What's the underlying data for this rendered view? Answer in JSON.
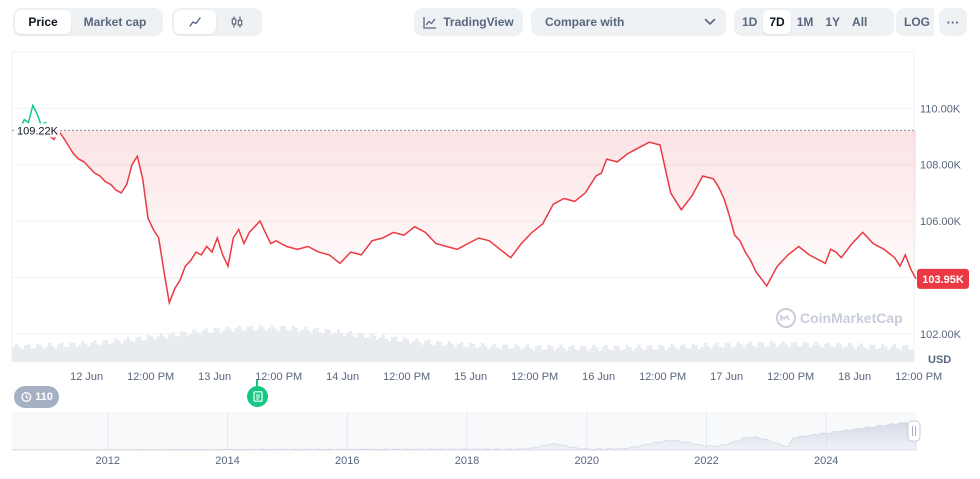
{
  "toolbar": {
    "type_tabs": [
      {
        "label": "Price",
        "active": true
      },
      {
        "label": "Market cap",
        "active": false
      }
    ],
    "style_tabs": [
      {
        "icon": "line-chart-icon",
        "active": true
      },
      {
        "icon": "candlestick-icon",
        "active": false
      }
    ],
    "tradingview_label": "TradingView",
    "compare_label": "Compare with",
    "ranges": [
      {
        "label": "1D",
        "active": false
      },
      {
        "label": "7D",
        "active": true
      },
      {
        "label": "1M",
        "active": false
      },
      {
        "label": "1Y",
        "active": false
      },
      {
        "label": "All",
        "active": false
      }
    ],
    "log_label": "LOG",
    "more_label": "···"
  },
  "colors": {
    "up": "#16c784",
    "down": "#ea3943",
    "grid": "#eff2f5",
    "axis_text": "#58667e"
  },
  "chart_data": {
    "type": "line",
    "currency_label": "USD",
    "watermark": "CoinMarketCap",
    "reference_value": 109220,
    "reference_label": "109.22K",
    "current_value": 103950,
    "current_label": "103.95K",
    "ylim": [
      101000,
      112000
    ],
    "y_ticks": [
      {
        "value": 102000,
        "label": "102.00K"
      },
      {
        "value": 104000,
        "label": "104.00K"
      },
      {
        "value": 106000,
        "label": "106.00K"
      },
      {
        "value": 108000,
        "label": "108.00K"
      },
      {
        "value": 110000,
        "label": "110.00K"
      }
    ],
    "x_range_hours": [
      0,
      168
    ],
    "x_ticks": [
      {
        "hour": 12.5,
        "label": "12 Jun"
      },
      {
        "hour": 24.5,
        "label": "12:00 PM"
      },
      {
        "hour": 36.5,
        "label": "13 Jun"
      },
      {
        "hour": 48.5,
        "label": "12:00 PM"
      },
      {
        "hour": 60.5,
        "label": "14 Jun"
      },
      {
        "hour": 72.5,
        "label": "12:00 PM"
      },
      {
        "hour": 84.5,
        "label": "15 Jun"
      },
      {
        "hour": 96.5,
        "label": "12:00 PM"
      },
      {
        "hour": 108.5,
        "label": "16 Jun"
      },
      {
        "hour": 120.5,
        "label": "12:00 PM"
      },
      {
        "hour": 132.5,
        "label": "17 Jun"
      },
      {
        "hour": 144.5,
        "label": "12:00 PM"
      },
      {
        "hour": 156.5,
        "label": "18 Jun"
      },
      {
        "hour": 168.5,
        "label": "12:00 PM"
      }
    ],
    "series": [
      {
        "x": [
          0,
          0.8,
          1.6,
          2.4,
          3.2,
          4.0,
          4.8,
          5.6,
          6.4,
          7.2,
          8.0,
          9.0,
          10.0,
          11.0,
          12.0,
          13.0,
          14.0,
          15.0,
          16.0,
          17.0,
          18.0,
          19.0,
          20.0,
          21.0,
          22.0,
          23.0,
          24.0,
          25.0,
          26.0,
          27.0,
          28.0,
          29.0,
          30.0,
          31.0,
          32.0,
          33.0,
          34.0,
          35.0,
          36.0,
          37.0,
          38.0,
          39.0,
          40.0,
          41.0,
          42.0,
          43.0,
          44.0,
          45.0,
          46.0,
          47.0,
          48.0,
          50.0,
          52.0,
          54.0,
          56.0,
          58.0,
          60.0,
          62.0,
          64.0,
          66.0,
          68.0,
          70.0,
          72.0,
          74.0,
          76.0,
          78.0,
          80.0,
          82.0,
          84.0,
          86.0,
          88.0,
          90.0,
          92.0,
          94.0,
          96.0,
          98.0,
          100.0,
          102.0,
          104.0,
          106.0,
          108.0,
          109.0,
          110.0,
          112.0,
          114.0,
          116.0,
          118.0,
          120.0,
          122.0,
          124.0,
          126.0,
          128.0,
          130.0,
          131.0,
          132.0,
          133.0,
          134.0,
          135.0,
          136.0,
          137.0,
          138.0,
          140.0,
          142.0,
          144.0,
          146.0,
          148.0,
          150.0,
          151.0,
          152.0,
          153.0,
          154.0,
          156.0,
          158.0,
          160.0,
          162.0,
          164.0,
          165.0,
          166.0,
          167.0,
          168.0
        ],
        "values": [
          109300,
          109600,
          109500,
          110100,
          109800,
          109400,
          109500,
          109000,
          108900,
          109200,
          109000,
          108700,
          108400,
          108200,
          108100,
          107900,
          107700,
          107600,
          107400,
          107300,
          107100,
          107000,
          107300,
          108000,
          108300,
          107500,
          106100,
          105700,
          105400,
          104200,
          103100,
          103600,
          103900,
          104400,
          104600,
          104900,
          104800,
          105100,
          104900,
          105400,
          104800,
          104400,
          105400,
          105700,
          105200,
          105600,
          105800,
          106000,
          105600,
          105200,
          105300,
          105100,
          105000,
          105100,
          104900,
          104800,
          104500,
          104900,
          104800,
          105300,
          105400,
          105600,
          105500,
          105800,
          105600,
          105200,
          105100,
          105000,
          105200,
          105400,
          105300,
          105000,
          104700,
          105200,
          105600,
          105900,
          106600,
          106800,
          106700,
          107000,
          107600,
          107700,
          108200,
          108100,
          108400,
          108600,
          108800,
          108700,
          107000,
          106400,
          106900,
          107600,
          107500,
          107200,
          106800,
          106200,
          105500,
          105300,
          104900,
          104600,
          104200,
          103700,
          104400,
          104800,
          105100,
          104800,
          104600,
          104500,
          105000,
          104900,
          104700,
          105200,
          105600,
          105200,
          105000,
          104700,
          104400,
          104800,
          104300,
          103950
        ]
      }
    ],
    "volume": [],
    "overview": {
      "type": "area",
      "x_ticks": [
        "2012",
        "2014",
        "2016",
        "2018",
        "2020",
        "2022",
        "2024"
      ]
    },
    "events_count": "110"
  }
}
